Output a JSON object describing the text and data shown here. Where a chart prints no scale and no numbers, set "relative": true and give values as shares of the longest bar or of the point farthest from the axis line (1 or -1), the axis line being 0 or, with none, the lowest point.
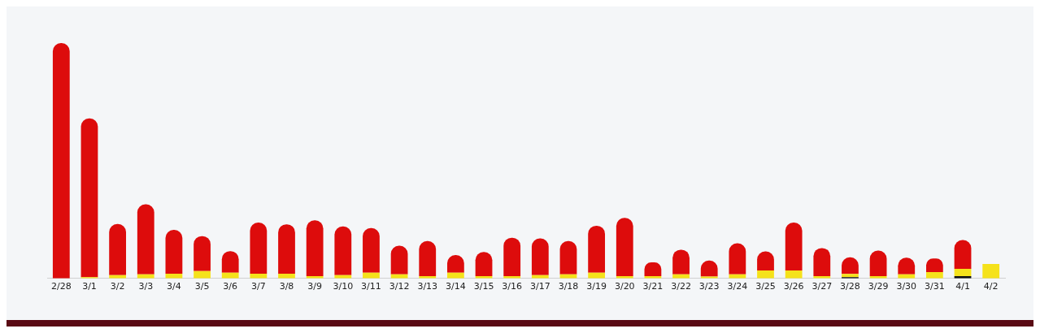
{
  "chart_data": {
    "type": "bar",
    "relative": true,
    "stacked": true,
    "grid": false,
    "legend": false,
    "categories": [
      "2/28",
      "3/1",
      "3/2",
      "3/3",
      "3/4",
      "3/5",
      "3/6",
      "3/7",
      "3/8",
      "3/9",
      "3/10",
      "3/11",
      "3/12",
      "3/13",
      "3/14",
      "3/15",
      "3/16",
      "3/17",
      "3/18",
      "3/19",
      "3/20",
      "3/21",
      "3/22",
      "3/23",
      "3/24",
      "3/25",
      "3/26",
      "3/27",
      "3/28",
      "3/29",
      "3/30",
      "3/31",
      "4/1",
      "4/2"
    ],
    "series": [
      {
        "color": "#111111",
        "values": [
          0,
          0,
          0,
          0,
          0,
          0,
          0,
          0,
          0,
          0,
          0,
          0,
          0,
          0,
          0,
          0,
          0,
          0,
          0,
          0,
          0,
          0,
          0,
          0,
          0,
          0,
          0,
          0,
          0.005,
          0,
          0,
          0,
          0.01,
          0
        ]
      },
      {
        "color": "#f5e21b",
        "values": [
          0,
          0.005,
          0.014,
          0.017,
          0.02,
          0.031,
          0.024,
          0.02,
          0.02,
          0.01,
          0.014,
          0.024,
          0.017,
          0.01,
          0.024,
          0.01,
          0.01,
          0.014,
          0.017,
          0.024,
          0.01,
          0.01,
          0.017,
          0.008,
          0.017,
          0.034,
          0.034,
          0.01,
          0.014,
          0.01,
          0.017,
          0.027,
          0.031,
          0.061
        ]
      },
      {
        "color": "#dd0c0c",
        "values": [
          1,
          0.675,
          0.217,
          0.298,
          0.186,
          0.149,
          0.092,
          0.217,
          0.21,
          0.237,
          0.207,
          0.19,
          0.122,
          0.149,
          0.075,
          0.102,
          0.163,
          0.156,
          0.142,
          0.2,
          0.247,
          0.058,
          0.105,
          0.068,
          0.132,
          0.081,
          0.203,
          0.119,
          0.071,
          0.108,
          0.071,
          0.058,
          0.122,
          0
        ]
      }
    ]
  }
}
